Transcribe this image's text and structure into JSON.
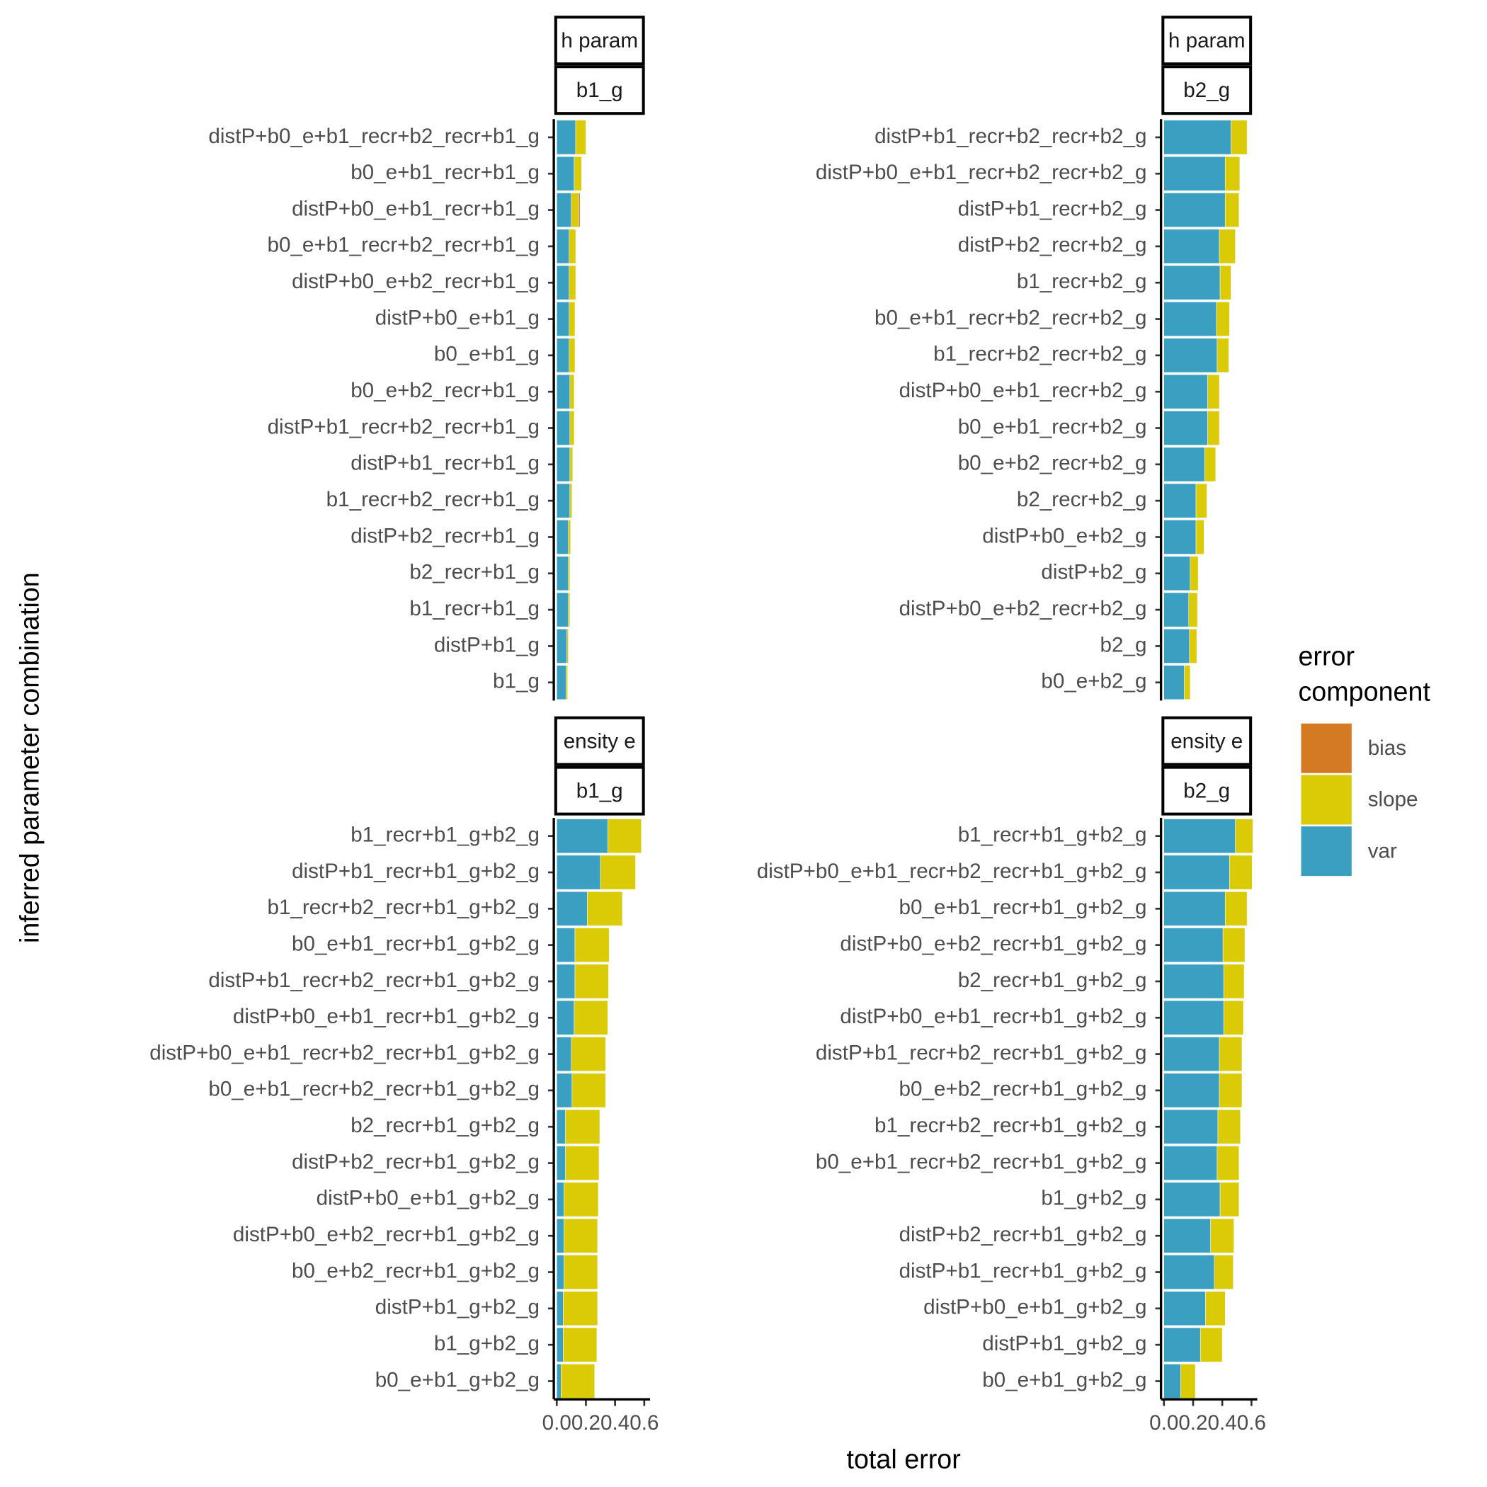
{
  "figure": {
    "x_label": "total error",
    "y_label": "inferred parameter combination",
    "legend_title": "error component"
  },
  "chart_data": [
    {
      "type": "bar",
      "orientation": "horizontal",
      "strips": [
        "h param",
        "b1_g"
      ],
      "categories": [
        "distP+b0_e+b1_recr+b2_recr+b1_g",
        "b0_e+b1_recr+b1_g",
        "distP+b0_e+b1_recr+b1_g",
        "b0_e+b1_recr+b2_recr+b1_g",
        "distP+b0_e+b2_recr+b1_g",
        "distP+b0_e+b1_g",
        "b0_e+b1_g",
        "b0_e+b2_recr+b1_g",
        "distP+b1_recr+b2_recr+b1_g",
        "distP+b1_recr+b1_g",
        "b1_recr+b2_recr+b1_g",
        "distP+b2_recr+b1_g",
        "b2_recr+b1_g",
        "b1_recr+b1_g",
        "distP+b1_g",
        "b1_g"
      ],
      "series": [
        {
          "name": "var",
          "color": "#3b9fc1",
          "values": [
            0.13,
            0.12,
            0.1,
            0.085,
            0.085,
            0.085,
            0.085,
            0.09,
            0.09,
            0.09,
            0.09,
            0.08,
            0.08,
            0.08,
            0.07,
            0.065
          ]
        },
        {
          "name": "slope",
          "color": "#dbcb07",
          "values": [
            0.07,
            0.05,
            0.05,
            0.045,
            0.045,
            0.04,
            0.04,
            0.03,
            0.03,
            0.02,
            0.015,
            0.015,
            0.01,
            0.01,
            0.01,
            0.01
          ]
        },
        {
          "name": "bias",
          "color": "#d47a22",
          "values": [
            0,
            0,
            0.01,
            0,
            0,
            0,
            0,
            0,
            0,
            0,
            0,
            0,
            0,
            0,
            0,
            0
          ]
        }
      ],
      "xlim": [
        -0.02,
        0.64
      ]
    },
    {
      "type": "bar",
      "orientation": "horizontal",
      "strips": [
        "h param",
        "b2_g"
      ],
      "categories": [
        "distP+b1_recr+b2_recr+b2_g",
        "distP+b0_e+b1_recr+b2_recr+b2_g",
        "distP+b1_recr+b2_g",
        "distP+b2_recr+b2_g",
        "b1_recr+b2_g",
        "b0_e+b1_recr+b2_recr+b2_g",
        "b1_recr+b2_recr+b2_g",
        "distP+b0_e+b1_recr+b2_g",
        "b0_e+b1_recr+b2_g",
        "b0_e+b2_recr+b2_g",
        "b2_recr+b2_g",
        "distP+b0_e+b2_g",
        "distP+b2_g",
        "distP+b0_e+b2_recr+b2_g",
        "b2_g",
        "b0_e+b2_g"
      ],
      "series": [
        {
          "name": "var",
          "color": "#3b9fc1",
          "values": [
            0.46,
            0.42,
            0.42,
            0.38,
            0.385,
            0.36,
            0.365,
            0.3,
            0.3,
            0.28,
            0.22,
            0.22,
            0.18,
            0.17,
            0.175,
            0.14
          ]
        },
        {
          "name": "slope",
          "color": "#dbcb07",
          "values": [
            0.11,
            0.1,
            0.095,
            0.11,
            0.075,
            0.09,
            0.08,
            0.08,
            0.08,
            0.075,
            0.075,
            0.055,
            0.055,
            0.06,
            0.05,
            0.04
          ]
        },
        {
          "name": "bias",
          "color": "#d47a22",
          "values": [
            0,
            0,
            0,
            0,
            0,
            0,
            0,
            0,
            0,
            0,
            0,
            0,
            0,
            0,
            0,
            0
          ]
        }
      ],
      "xlim": [
        -0.02,
        0.64
      ]
    },
    {
      "type": "bar",
      "orientation": "horizontal",
      "strips": [
        "ensity e",
        "b1_g"
      ],
      "categories": [
        "b1_recr+b1_g+b2_g",
        "distP+b1_recr+b1_g+b2_g",
        "b1_recr+b2_recr+b1_g+b2_g",
        "b0_e+b1_recr+b1_g+b2_g",
        "distP+b1_recr+b2_recr+b1_g+b2_g",
        "distP+b0_e+b1_recr+b1_g+b2_g",
        "distP+b0_e+b1_recr+b2_recr+b1_g+b2_g",
        "b0_e+b1_recr+b2_recr+b1_g+b2_g",
        "b2_recr+b1_g+b2_g",
        "distP+b2_recr+b1_g+b2_g",
        "distP+b0_e+b1_g+b2_g",
        "distP+b0_e+b2_recr+b1_g+b2_g",
        "b0_e+b2_recr+b1_g+b2_g",
        "distP+b1_g+b2_g",
        "b1_g+b2_g",
        "b0_e+b1_g+b2_g"
      ],
      "series": [
        {
          "name": "var",
          "color": "#3b9fc1",
          "values": [
            0.35,
            0.3,
            0.21,
            0.125,
            0.125,
            0.12,
            0.1,
            0.105,
            0.06,
            0.06,
            0.05,
            0.05,
            0.05,
            0.045,
            0.045,
            0.03
          ]
        },
        {
          "name": "slope",
          "color": "#dbcb07",
          "values": [
            0.23,
            0.24,
            0.24,
            0.235,
            0.23,
            0.23,
            0.235,
            0.23,
            0.235,
            0.23,
            0.235,
            0.23,
            0.23,
            0.235,
            0.23,
            0.23
          ]
        },
        {
          "name": "bias",
          "color": "#d47a22",
          "values": [
            0,
            0,
            0,
            0,
            0,
            0,
            0,
            0,
            0,
            0,
            0,
            0,
            0,
            0,
            0,
            0
          ]
        }
      ],
      "xlim": [
        -0.02,
        0.64
      ],
      "xticks": [
        {
          "value": 0,
          "label": "0.0"
        },
        0.2,
        0.4,
        0.6
      ]
    },
    {
      "type": "bar",
      "orientation": "horizontal",
      "strips": [
        "ensity e",
        "b2_g"
      ],
      "categories": [
        "b1_recr+b1_g+b2_g",
        "distP+b0_e+b1_recr+b2_recr+b1_g+b2_g",
        "b0_e+b1_recr+b1_g+b2_g",
        "distP+b0_e+b2_recr+b1_g+b2_g",
        "b2_recr+b1_g+b2_g",
        "distP+b0_e+b1_recr+b1_g+b2_g",
        "distP+b1_recr+b2_recr+b1_g+b2_g",
        "b0_e+b2_recr+b1_g+b2_g",
        "b1_recr+b2_recr+b1_g+b2_g",
        "b0_e+b1_recr+b2_recr+b1_g+b2_g",
        "b1_g+b2_g",
        "distP+b2_recr+b1_g+b2_g",
        "distP+b1_recr+b1_g+b2_g",
        "distP+b0_e+b1_g+b2_g",
        "distP+b1_g+b2_g",
        "b0_e+b1_g+b2_g"
      ],
      "series": [
        {
          "name": "var",
          "color": "#3b9fc1",
          "values": [
            0.49,
            0.45,
            0.42,
            0.405,
            0.41,
            0.41,
            0.38,
            0.38,
            0.37,
            0.365,
            0.385,
            0.32,
            0.345,
            0.285,
            0.25,
            0.115
          ]
        },
        {
          "name": "slope",
          "color": "#dbcb07",
          "values": [
            0.12,
            0.155,
            0.15,
            0.15,
            0.14,
            0.135,
            0.155,
            0.155,
            0.155,
            0.15,
            0.13,
            0.16,
            0.13,
            0.135,
            0.15,
            0.1
          ]
        },
        {
          "name": "bias",
          "color": "#d47a22",
          "values": [
            0,
            0,
            0,
            0,
            0,
            0,
            0,
            0,
            0,
            0,
            0,
            0,
            0,
            0,
            0,
            0
          ]
        }
      ],
      "xlim": [
        -0.02,
        0.64
      ],
      "xticks": [
        {
          "value": 0,
          "label": "0.0"
        },
        0.2,
        0.4,
        0.6
      ]
    }
  ]
}
